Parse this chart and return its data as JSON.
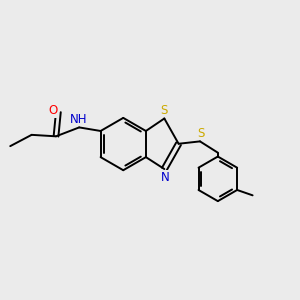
{
  "background_color": "#ebebeb",
  "bond_color": "#000000",
  "figsize": [
    3.0,
    3.0
  ],
  "dpi": 100,
  "atom_colors": {
    "N": "#0000cc",
    "O": "#ff0000",
    "S": "#ccaa00",
    "C": "#000000",
    "H": "#0000cc"
  },
  "bond_lw": 1.4,
  "font_size": 8.5
}
